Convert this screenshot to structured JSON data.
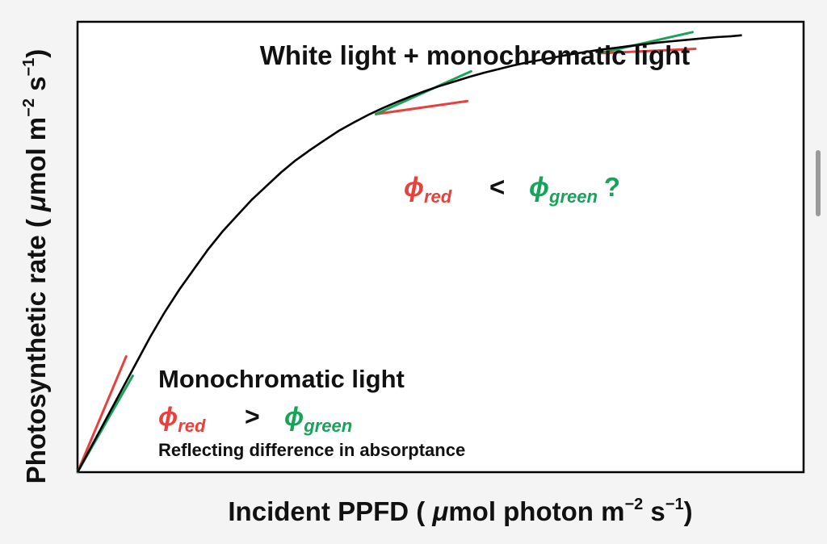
{
  "chart_data": {
    "type": "line",
    "title": "",
    "xlabel": {
      "main": "Incident PPFD (",
      "mu": " μ",
      "rest": "mol photon m",
      "exp1": "−2",
      "mid": " s",
      "exp2": "−1",
      "close": ")"
    },
    "ylabel": {
      "main": "Photosynthetic rate (",
      "mu": " μ",
      "rest": "mol m",
      "exp1": "−2",
      "mid": " s",
      "exp2": "−1",
      "close": ")"
    },
    "xlim": [
      0,
      100
    ],
    "ylim": [
      0,
      100
    ],
    "grid": false,
    "curve": {
      "name": "",
      "color": "#000000",
      "points": [
        [
          0,
          0
        ],
        [
          2,
          6
        ],
        [
          4,
          12
        ],
        [
          6,
          18
        ],
        [
          8,
          24
        ],
        [
          10,
          30
        ],
        [
          12,
          35.5
        ],
        [
          14,
          40.5
        ],
        [
          16,
          45
        ],
        [
          18,
          49.5
        ],
        [
          20,
          53.5
        ],
        [
          22,
          57
        ],
        [
          24,
          60.5
        ],
        [
          26,
          63.5
        ],
        [
          28,
          66.5
        ],
        [
          30,
          69.2
        ],
        [
          32,
          71.5
        ],
        [
          34,
          73.7
        ],
        [
          36,
          75.8
        ],
        [
          38,
          77.6
        ],
        [
          40,
          79.3
        ],
        [
          42,
          80.8
        ],
        [
          44,
          82.2
        ],
        [
          46,
          83.5
        ],
        [
          48,
          84.7
        ],
        [
          50,
          85.8
        ],
        [
          52,
          86.8
        ],
        [
          54,
          87.8
        ],
        [
          56,
          88.7
        ],
        [
          58,
          89.5
        ],
        [
          60,
          90.3
        ],
        [
          62,
          91.0
        ],
        [
          64,
          91.6
        ],
        [
          66,
          92.2
        ],
        [
          68,
          92.8
        ],
        [
          70,
          93.3
        ],
        [
          72,
          93.8
        ],
        [
          74,
          94.2
        ],
        [
          76,
          94.6
        ],
        [
          78,
          95.0
        ],
        [
          80,
          95.4
        ],
        [
          82,
          95.7
        ],
        [
          84,
          96.0
        ],
        [
          86,
          96.3
        ],
        [
          88,
          96.6
        ],
        [
          90,
          96.8
        ],
        [
          91.5,
          97.0
        ]
      ]
    },
    "tangents": [
      {
        "name": "red-low",
        "color": "#e8413c",
        "x1": 0,
        "y1": 0,
        "x2": 6.7,
        "y2": 25.7
      },
      {
        "name": "green-low",
        "color": "#18a35a",
        "x1": 0,
        "y1": 0,
        "x2": 7.6,
        "y2": 21.4
      },
      {
        "name": "red-mid",
        "color": "#e8413c",
        "x1": 41.1,
        "y1": 79.5,
        "x2": 53.7,
        "y2": 82.4
      },
      {
        "name": "green-mid",
        "color": "#18a35a",
        "x1": 41.1,
        "y1": 79.5,
        "x2": 54.2,
        "y2": 89.0
      },
      {
        "name": "red-high",
        "color": "#e8413c",
        "x1": 71.8,
        "y1": 93.0,
        "x2": 85.1,
        "y2": 94.0
      },
      {
        "name": "green-high",
        "color": "#18a35a",
        "x1": 71.8,
        "y1": 93.0,
        "x2": 84.7,
        "y2": 97.7
      }
    ],
    "annotations": {
      "top_title": "White light + monochromatic light",
      "top_compare": {
        "phi_red": "ϕ",
        "red_sub": "red",
        "op": "<",
        "phi_green": "ϕ",
        "green_sub": "green",
        "suffix": "?"
      },
      "bottom_title": "Monochromatic light",
      "bottom_compare": {
        "phi_red": "ϕ",
        "red_sub": "red",
        "op": ">",
        "phi_green": "ϕ",
        "green_sub": "green"
      },
      "bottom_note": "Reflecting difference in absorptance"
    },
    "colors": {
      "red": "#e8413c",
      "green": "#18a35a",
      "axis": "#000000"
    }
  }
}
